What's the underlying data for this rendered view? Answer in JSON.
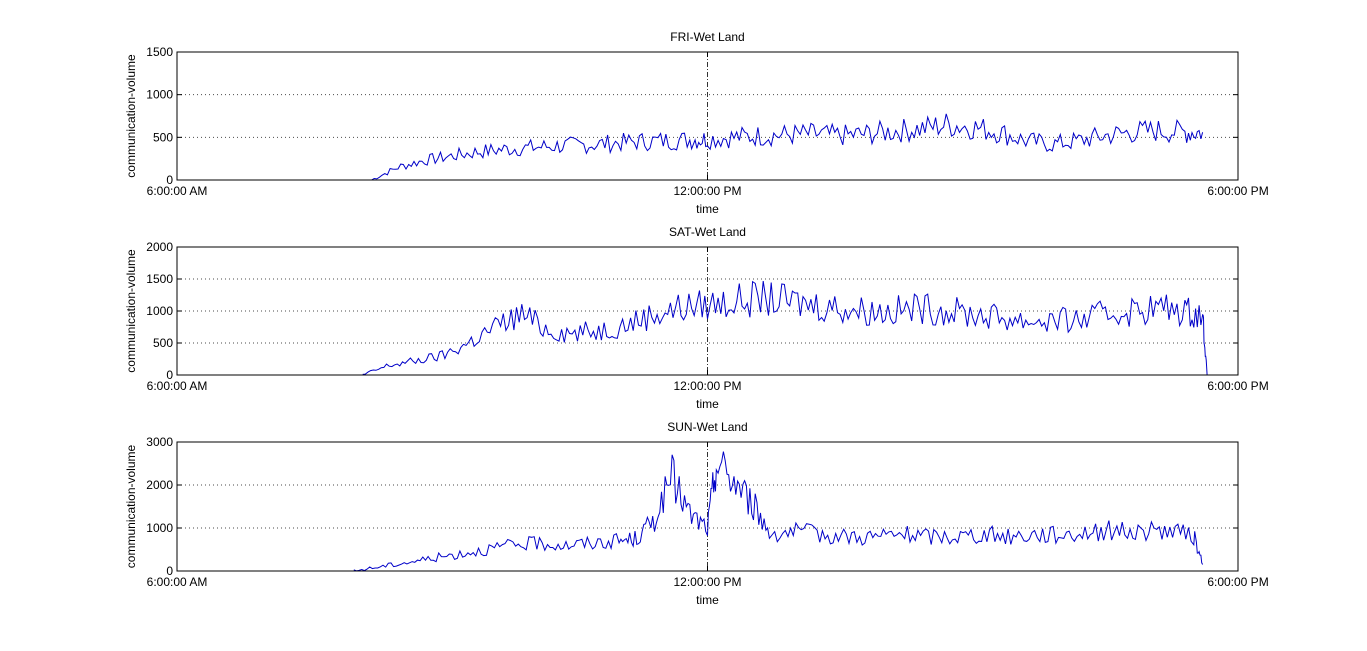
{
  "chart_data": [
    {
      "type": "line",
      "title": "FRI-Wet Land",
      "xlabel": "time",
      "ylabel": "communication-volume",
      "xlim_hours": [
        6,
        18
      ],
      "x_ticks": [
        "6:00:00 AM",
        "12:00:00 PM",
        "6:00:00 PM"
      ],
      "ylim": [
        0,
        1500
      ],
      "y_ticks": [
        0,
        500,
        1000,
        1500
      ],
      "grid": "dotted",
      "series": [
        {
          "color": "#0000c8",
          "x_hours": [
            8.2,
            8.5,
            8.8,
            9.1,
            9.4,
            9.7,
            10.0,
            10.3,
            10.6,
            10.9,
            11.2,
            11.5,
            11.8,
            12.0,
            12.3,
            12.6,
            12.9,
            13.2,
            13.5,
            13.8,
            14.1,
            14.4,
            14.7,
            15.0,
            15.3,
            15.6,
            15.9,
            16.2,
            16.5,
            16.8,
            17.1,
            17.4,
            17.6
          ],
          "y": [
            0,
            150,
            230,
            280,
            330,
            360,
            380,
            400,
            410,
            430,
            450,
            460,
            470,
            480,
            500,
            520,
            530,
            540,
            520,
            540,
            570,
            600,
            650,
            620,
            560,
            460,
            420,
            460,
            520,
            560,
            580,
            560,
            560
          ]
        }
      ]
    },
    {
      "type": "line",
      "title": "SAT-Wet Land",
      "xlabel": "time",
      "ylabel": "communication-volume",
      "xlim_hours": [
        6,
        18
      ],
      "x_ticks": [
        "6:00:00 AM",
        "12:00:00 PM",
        "6:00:00 PM"
      ],
      "ylim": [
        0,
        2000
      ],
      "y_ticks": [
        0,
        500,
        1000,
        1500,
        2000
      ],
      "grid": "dotted",
      "series": [
        {
          "color": "#0000c8",
          "x_hours": [
            8.1,
            8.4,
            8.7,
            9.0,
            9.3,
            9.6,
            9.9,
            10.2,
            10.5,
            10.8,
            11.1,
            11.4,
            11.7,
            12.0,
            12.3,
            12.6,
            12.9,
            13.2,
            13.5,
            13.8,
            14.1,
            14.4,
            14.7,
            15.0,
            15.3,
            15.6,
            15.9,
            16.2,
            16.5,
            16.8,
            17.1,
            17.4,
            17.6,
            17.65
          ],
          "y": [
            0,
            150,
            220,
            300,
            500,
            750,
            950,
            700,
            650,
            700,
            800,
            950,
            1050,
            1100,
            1150,
            1200,
            1150,
            1100,
            1050,
            1000,
            1000,
            1050,
            1000,
            950,
            900,
            850,
            850,
            850,
            950,
            1000,
            1050,
            1000,
            950,
            0
          ]
        }
      ]
    },
    {
      "type": "line",
      "title": "SUN-Wet Land",
      "xlabel": "time",
      "ylabel": "communication-volume",
      "xlim_hours": [
        6,
        18
      ],
      "x_ticks": [
        "6:00:00 AM",
        "12:00:00 PM",
        "6:00:00 PM"
      ],
      "ylim": [
        0,
        3000
      ],
      "y_ticks": [
        0,
        1000,
        2000,
        3000
      ],
      "grid": "dotted",
      "series": [
        {
          "color": "#0000c8",
          "x_hours": [
            8.0,
            8.3,
            8.6,
            8.9,
            9.2,
            9.5,
            9.8,
            10.1,
            10.4,
            10.7,
            11.0,
            11.2,
            11.4,
            11.6,
            11.8,
            12.0,
            12.1,
            12.3,
            12.5,
            12.7,
            13.0,
            13.3,
            13.6,
            13.9,
            14.2,
            14.5,
            14.8,
            15.1,
            15.4,
            15.7,
            16.0,
            16.3,
            16.6,
            16.9,
            17.2,
            17.5,
            17.6
          ],
          "y": [
            0,
            100,
            200,
            300,
            400,
            500,
            600,
            650,
            600,
            650,
            700,
            750,
            1200,
            2200,
            1300,
            1000,
            2500,
            2100,
            1600,
            900,
            900,
            850,
            800,
            800,
            850,
            800,
            800,
            850,
            800,
            850,
            850,
            900,
            950,
            900,
            950,
            800,
            150
          ]
        }
      ]
    }
  ]
}
